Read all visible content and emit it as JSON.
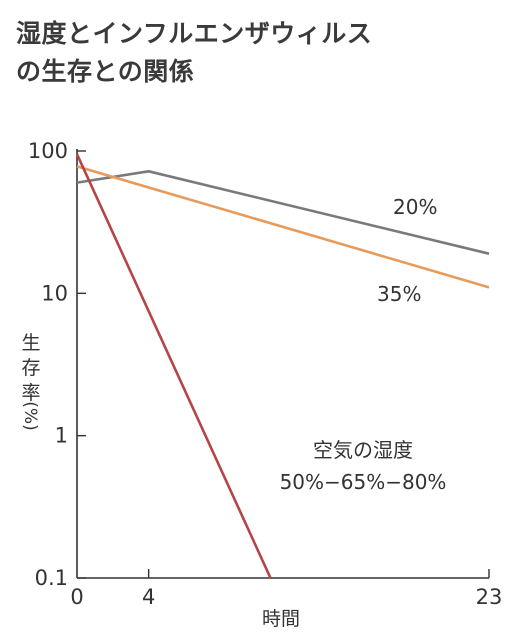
{
  "chart_data": {
    "type": "line",
    "title_lines": [
      "湿度とインフルエンザウィルス",
      "の生存との関係"
    ],
    "xlabel": "時間",
    "ylabel": [
      "生",
      "存",
      "率",
      "(%)"
    ],
    "x_ticks": [
      0,
      4,
      23
    ],
    "x_range": [
      0,
      23
    ],
    "y_scale": "log",
    "y_ticks": [
      {
        "value": 100,
        "label": "100"
      },
      {
        "value": 10,
        "label": "10"
      },
      {
        "value": 1,
        "label": "1"
      },
      {
        "value": 0.1,
        "label": "0.1"
      }
    ],
    "y_range": [
      0.1,
      100
    ],
    "grid": false,
    "series": [
      {
        "name": "20%",
        "color": "#7a7a7a",
        "points": [
          [
            0,
            60
          ],
          [
            4,
            72
          ],
          [
            23,
            19
          ]
        ]
      },
      {
        "name": "35%",
        "color": "#e89a5a",
        "points": [
          [
            0,
            78
          ],
          [
            23,
            11
          ]
        ]
      },
      {
        "name": "50%−65%−80%",
        "color": "#b54545",
        "points": [
          [
            0,
            95
          ],
          [
            10.8,
            0.1
          ]
        ]
      }
    ],
    "annotations": {
      "label_20": "20%",
      "label_35": "35%",
      "humidity_title": "空気の湿度",
      "humidity_values": "50%−65%−80%"
    }
  }
}
